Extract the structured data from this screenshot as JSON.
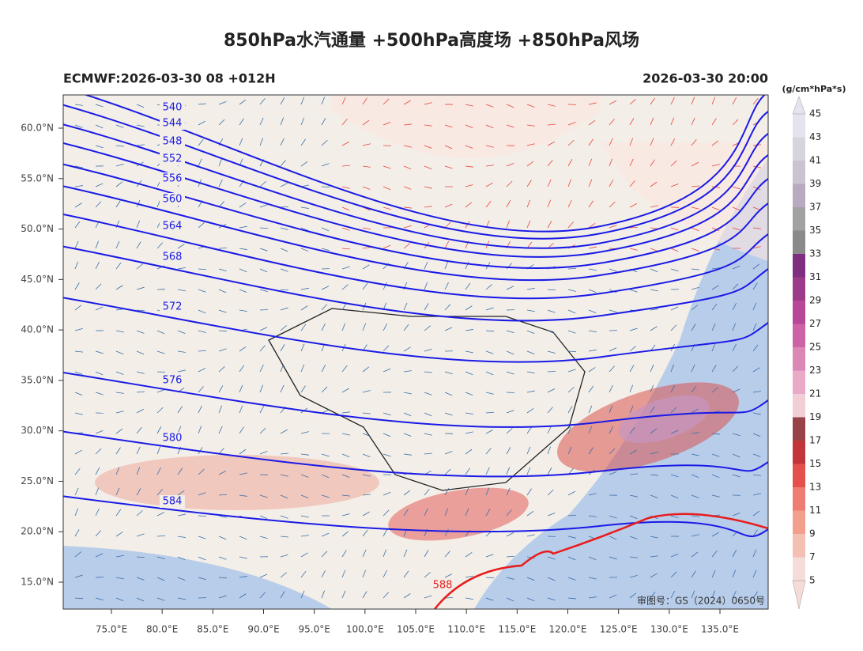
{
  "header": {
    "title": "850hPa水汽通量 +500hPa高度场 +850hPa风场",
    "model_run": "ECMWF:2026-03-30 08 +012H",
    "valid_time": "2026-03-30 20:00"
  },
  "map": {
    "lon_ticks": [
      {
        "value": 75,
        "label": "75.0°E"
      },
      {
        "value": 80,
        "label": "80.0°E"
      },
      {
        "value": 85,
        "label": "85.0°E"
      },
      {
        "value": 90,
        "label": "90.0°E"
      },
      {
        "value": 95,
        "label": "95.0°E"
      },
      {
        "value": 100,
        "label": "100.0°E"
      },
      {
        "value": 105,
        "label": "105.0°E"
      },
      {
        "value": 110,
        "label": "110.0°E"
      },
      {
        "value": 115,
        "label": "115.0°E"
      },
      {
        "value": 120,
        "label": "120.0°E"
      },
      {
        "value": 125,
        "label": "125.0°E"
      },
      {
        "value": 130,
        "label": "130.0°E"
      },
      {
        "value": 135,
        "label": "135.0°E"
      }
    ],
    "lat_ticks": [
      {
        "value": 60,
        "label": "60.0°N"
      },
      {
        "value": 55,
        "label": "55.0°N"
      },
      {
        "value": 50,
        "label": "50.0°N"
      },
      {
        "value": 45,
        "label": "45.0°N"
      },
      {
        "value": 40,
        "label": "40.0°N"
      },
      {
        "value": 35,
        "label": "35.0°N"
      },
      {
        "value": 30,
        "label": "30.0°N"
      },
      {
        "value": 25,
        "label": "25.0°N"
      },
      {
        "value": 20,
        "label": "20.0°N"
      },
      {
        "value": 15,
        "label": "15.0°N"
      }
    ],
    "contours": [
      540,
      544,
      548,
      552,
      556,
      560,
      564,
      568,
      572,
      576,
      580,
      584,
      588
    ],
    "approval": "审图号：GS（2024）0650号"
  },
  "colorbar": {
    "unit": "(g/cm*hPa*s)",
    "levels": [
      5,
      7,
      9,
      11,
      13,
      15,
      17,
      19,
      21,
      23,
      25,
      27,
      29,
      31,
      33,
      35,
      37,
      39,
      41,
      43,
      45
    ],
    "colors": [
      "#f5dcd8",
      "#f4c0b4",
      "#f29f8e",
      "#ef7c72",
      "#e4504d",
      "#c2363a",
      "#98424a",
      "#f2cfd6",
      "#e8aac6",
      "#dc88b6",
      "#cd63a6",
      "#b94798",
      "#9c3b8a",
      "#7f2f7f",
      "#8a8a8a",
      "#a2a2a2",
      "#b8aac0",
      "#cbc3d0",
      "#d8d4de",
      "#e4e4ee"
    ]
  }
}
